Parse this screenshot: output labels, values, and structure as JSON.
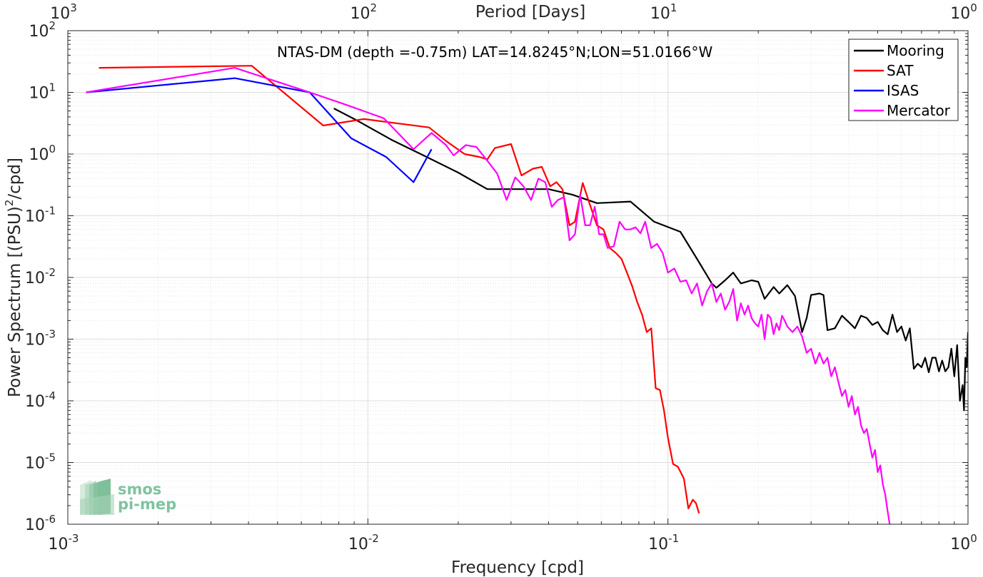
{
  "chart_data": {
    "type": "line",
    "title": "",
    "annotation": "NTAS-DM (depth =-0.75m) LAT=14.8245°N;LON=51.0166°W",
    "xlabel": "Frequency [cpd]",
    "ylabel_main": "Power Spectrum [(PSU)",
    "ylabel_sup": "2",
    "ylabel_tail": "/cpd]",
    "x2label": "Period [Days]",
    "xscale": "log",
    "yscale": "log",
    "xlim": [
      0.001,
      1
    ],
    "ylim": [
      1e-06,
      100
    ],
    "grid": true,
    "legend_position": "top-right",
    "x_ticks": [
      {
        "value": 0.001,
        "base": "10",
        "exp": "-3"
      },
      {
        "value": 0.01,
        "base": "10",
        "exp": "-2"
      },
      {
        "value": 0.1,
        "base": "10",
        "exp": "-1"
      },
      {
        "value": 1,
        "base": "10",
        "exp": "0"
      }
    ],
    "x2_ticks": [
      {
        "value": 0.001,
        "base": "10",
        "exp": "3"
      },
      {
        "value": 0.01,
        "base": "10",
        "exp": "2"
      },
      {
        "value": 0.1,
        "base": "10",
        "exp": "1"
      },
      {
        "value": 1,
        "base": "10",
        "exp": "0"
      }
    ],
    "y_ticks": [
      {
        "value": 1e-06,
        "base": "10",
        "exp": "-6"
      },
      {
        "value": 1e-05,
        "base": "10",
        "exp": "-5"
      },
      {
        "value": 0.0001,
        "base": "10",
        "exp": "-4"
      },
      {
        "value": 0.001,
        "base": "10",
        "exp": "-3"
      },
      {
        "value": 0.01,
        "base": "10",
        "exp": "-2"
      },
      {
        "value": 0.1,
        "base": "10",
        "exp": "-1"
      },
      {
        "value": 1,
        "base": "10",
        "exp": "0"
      },
      {
        "value": 10,
        "base": "10",
        "exp": "1"
      },
      {
        "value": 100,
        "base": "10",
        "exp": "2"
      }
    ],
    "series": [
      {
        "name": "Mooring",
        "color": "#000000",
        "points": [
          [
            0.0077,
            5.5
          ],
          [
            0.0092,
            3.5
          ],
          [
            0.012,
            1.7
          ],
          [
            0.015,
            1.0
          ],
          [
            0.02,
            0.5
          ],
          [
            0.025,
            0.27
          ],
          [
            0.033,
            0.27
          ],
          [
            0.04,
            0.27
          ],
          [
            0.048,
            0.22
          ],
          [
            0.058,
            0.16
          ],
          [
            0.075,
            0.17
          ],
          [
            0.09,
            0.08
          ],
          [
            0.11,
            0.055
          ],
          [
            0.125,
            0.02
          ],
          [
            0.14,
            0.008
          ],
          [
            0.145,
            0.0068
          ],
          [
            0.155,
            0.009
          ],
          [
            0.165,
            0.012
          ],
          [
            0.175,
            0.008
          ],
          [
            0.19,
            0.009
          ],
          [
            0.2,
            0.0085
          ],
          [
            0.21,
            0.0045
          ],
          [
            0.225,
            0.007
          ],
          [
            0.235,
            0.0055
          ],
          [
            0.25,
            0.0075
          ],
          [
            0.265,
            0.005
          ],
          [
            0.28,
            0.0013
          ],
          [
            0.29,
            0.0022
          ],
          [
            0.3,
            0.0052
          ],
          [
            0.32,
            0.0055
          ],
          [
            0.33,
            0.0052
          ],
          [
            0.34,
            0.0014
          ],
          [
            0.36,
            0.0015
          ],
          [
            0.38,
            0.0024
          ],
          [
            0.4,
            0.0019
          ],
          [
            0.42,
            0.0015
          ],
          [
            0.44,
            0.0024
          ],
          [
            0.46,
            0.0022
          ],
          [
            0.48,
            0.0017
          ],
          [
            0.5,
            0.0019
          ],
          [
            0.52,
            0.0014
          ],
          [
            0.54,
            0.0012
          ],
          [
            0.56,
            0.0025
          ],
          [
            0.58,
            0.0013
          ],
          [
            0.6,
            0.0016
          ],
          [
            0.62,
            0.00095
          ],
          [
            0.64,
            0.0015
          ],
          [
            0.66,
            0.00033
          ],
          [
            0.68,
            0.0004
          ],
          [
            0.7,
            0.00035
          ],
          [
            0.72,
            0.0005
          ],
          [
            0.74,
            0.00029
          ],
          [
            0.76,
            0.0005
          ],
          [
            0.78,
            0.0005
          ],
          [
            0.8,
            0.0003
          ],
          [
            0.82,
            0.00045
          ],
          [
            0.84,
            0.0003
          ],
          [
            0.86,
            0.00035
          ],
          [
            0.88,
            0.0007
          ],
          [
            0.9,
            0.00025
          ],
          [
            0.92,
            0.0008
          ],
          [
            0.94,
            0.0001
          ],
          [
            0.96,
            0.00018
          ],
          [
            0.97,
            7e-05
          ],
          [
            0.98,
            0.0005
          ],
          [
            0.99,
            0.00035
          ],
          [
            1.0,
            0.0013
          ]
        ]
      },
      {
        "name": "SAT",
        "color": "#ff0000",
        "points": [
          [
            0.00127,
            25
          ],
          [
            0.0041,
            27
          ],
          [
            0.0071,
            2.9
          ],
          [
            0.0097,
            3.7
          ],
          [
            0.0135,
            3.0
          ],
          [
            0.016,
            2.7
          ],
          [
            0.0183,
            1.6
          ],
          [
            0.021,
            1.0
          ],
          [
            0.0235,
            0.9
          ],
          [
            0.025,
            0.82
          ],
          [
            0.0265,
            1.25
          ],
          [
            0.03,
            1.45
          ],
          [
            0.0325,
            0.45
          ],
          [
            0.0355,
            0.58
          ],
          [
            0.038,
            0.62
          ],
          [
            0.0405,
            0.3
          ],
          [
            0.0425,
            0.35
          ],
          [
            0.0445,
            0.27
          ],
          [
            0.047,
            0.07
          ],
          [
            0.049,
            0.08
          ],
          [
            0.052,
            0.34
          ],
          [
            0.055,
            0.15
          ],
          [
            0.058,
            0.07
          ],
          [
            0.061,
            0.06
          ],
          [
            0.064,
            0.03
          ],
          [
            0.067,
            0.025
          ],
          [
            0.07,
            0.02
          ],
          [
            0.073,
            0.012
          ],
          [
            0.076,
            0.0072
          ],
          [
            0.079,
            0.004
          ],
          [
            0.082,
            0.0025
          ],
          [
            0.085,
            0.0013
          ],
          [
            0.088,
            0.0015
          ],
          [
            0.091,
            0.00016
          ],
          [
            0.094,
            0.00015
          ],
          [
            0.097,
            7e-05
          ],
          [
            0.1,
            2.5e-05
          ],
          [
            0.104,
            9.5e-06
          ],
          [
            0.108,
            8.5e-06
          ],
          [
            0.113,
            5.5e-06
          ],
          [
            0.117,
            1.8e-06
          ],
          [
            0.121,
            2.5e-06
          ],
          [
            0.124,
            2.2e-06
          ],
          [
            0.127,
            1.5e-06
          ]
        ]
      },
      {
        "name": "ISAS",
        "color": "#0000ff",
        "points": [
          [
            0.00115,
            10
          ],
          [
            0.0036,
            17
          ],
          [
            0.0064,
            10
          ],
          [
            0.0088,
            1.8
          ],
          [
            0.0115,
            0.9
          ],
          [
            0.0142,
            0.35
          ],
          [
            0.0163,
            1.2
          ]
        ]
      },
      {
        "name": "Mercator",
        "color": "#ff00ff",
        "points": [
          [
            0.00115,
            10
          ],
          [
            0.0036,
            25
          ],
          [
            0.0064,
            10
          ],
          [
            0.0083,
            6.5
          ],
          [
            0.0113,
            3.8
          ],
          [
            0.0142,
            1.2
          ],
          [
            0.0163,
            2.2
          ],
          [
            0.0182,
            1.4
          ],
          [
            0.0193,
            0.95
          ],
          [
            0.0212,
            1.4
          ],
          [
            0.023,
            1.3
          ],
          [
            0.025,
            0.78
          ],
          [
            0.027,
            0.48
          ],
          [
            0.029,
            0.18
          ],
          [
            0.031,
            0.42
          ],
          [
            0.033,
            0.3
          ],
          [
            0.035,
            0.18
          ],
          [
            0.037,
            0.4
          ],
          [
            0.039,
            0.35
          ],
          [
            0.041,
            0.14
          ],
          [
            0.043,
            0.18
          ],
          [
            0.045,
            0.2
          ],
          [
            0.047,
            0.04
          ],
          [
            0.049,
            0.05
          ],
          [
            0.051,
            0.22
          ],
          [
            0.053,
            0.07
          ],
          [
            0.055,
            0.07
          ],
          [
            0.057,
            0.14
          ],
          [
            0.059,
            0.05
          ],
          [
            0.061,
            0.05
          ],
          [
            0.063,
            0.03
          ],
          [
            0.066,
            0.032
          ],
          [
            0.069,
            0.08
          ],
          [
            0.072,
            0.06
          ],
          [
            0.075,
            0.06
          ],
          [
            0.078,
            0.065
          ],
          [
            0.081,
            0.052
          ],
          [
            0.084,
            0.08
          ],
          [
            0.088,
            0.03
          ],
          [
            0.092,
            0.035
          ],
          [
            0.096,
            0.025
          ],
          [
            0.1,
            0.012
          ],
          [
            0.105,
            0.014
          ],
          [
            0.11,
            0.0085
          ],
          [
            0.115,
            0.009
          ],
          [
            0.12,
            0.0055
          ],
          [
            0.125,
            0.008
          ],
          [
            0.13,
            0.0035
          ],
          [
            0.135,
            0.006
          ],
          [
            0.14,
            0.008
          ],
          [
            0.145,
            0.004
          ],
          [
            0.15,
            0.0055
          ],
          [
            0.155,
            0.003
          ],
          [
            0.16,
            0.004
          ],
          [
            0.165,
            0.0065
          ],
          [
            0.17,
            0.002
          ],
          [
            0.175,
            0.0038
          ],
          [
            0.18,
            0.0025
          ],
          [
            0.185,
            0.0035
          ],
          [
            0.19,
            0.0022
          ],
          [
            0.195,
            0.0018
          ],
          [
            0.2,
            0.0016
          ],
          [
            0.205,
            0.0025
          ],
          [
            0.21,
            0.001
          ],
          [
            0.215,
            0.0025
          ],
          [
            0.22,
            0.0022
          ],
          [
            0.225,
            0.0012
          ],
          [
            0.23,
            0.0018
          ],
          [
            0.235,
            0.0014
          ],
          [
            0.24,
            0.0024
          ],
          [
            0.245,
            0.002
          ],
          [
            0.25,
            0.0016
          ],
          [
            0.26,
            0.0013
          ],
          [
            0.27,
            0.0016
          ],
          [
            0.28,
            0.0011
          ],
          [
            0.29,
            0.0006
          ],
          [
            0.3,
            0.0007
          ],
          [
            0.31,
            0.0004
          ],
          [
            0.32,
            0.0006
          ],
          [
            0.33,
            0.0004
          ],
          [
            0.34,
            0.0005
          ],
          [
            0.35,
            0.00025
          ],
          [
            0.36,
            0.00035
          ],
          [
            0.37,
            0.0002
          ],
          [
            0.38,
            0.00012
          ],
          [
            0.39,
            0.00015
          ],
          [
            0.4,
            8e-05
          ],
          [
            0.41,
            0.00012
          ],
          [
            0.42,
            6e-05
          ],
          [
            0.43,
            8e-05
          ],
          [
            0.44,
            4e-05
          ],
          [
            0.45,
            3e-05
          ],
          [
            0.46,
            3.5e-05
          ],
          [
            0.47,
            2e-05
          ],
          [
            0.48,
            1.2e-05
          ],
          [
            0.49,
            1.6e-05
          ],
          [
            0.5,
            7e-06
          ],
          [
            0.51,
            9e-06
          ],
          [
            0.52,
            4.5e-06
          ],
          [
            0.53,
            3e-06
          ],
          [
            0.54,
            1.6e-06
          ],
          [
            0.55,
            9e-07
          ]
        ]
      }
    ]
  },
  "logo": {
    "line1": "smos",
    "line2": "pi-mep"
  }
}
